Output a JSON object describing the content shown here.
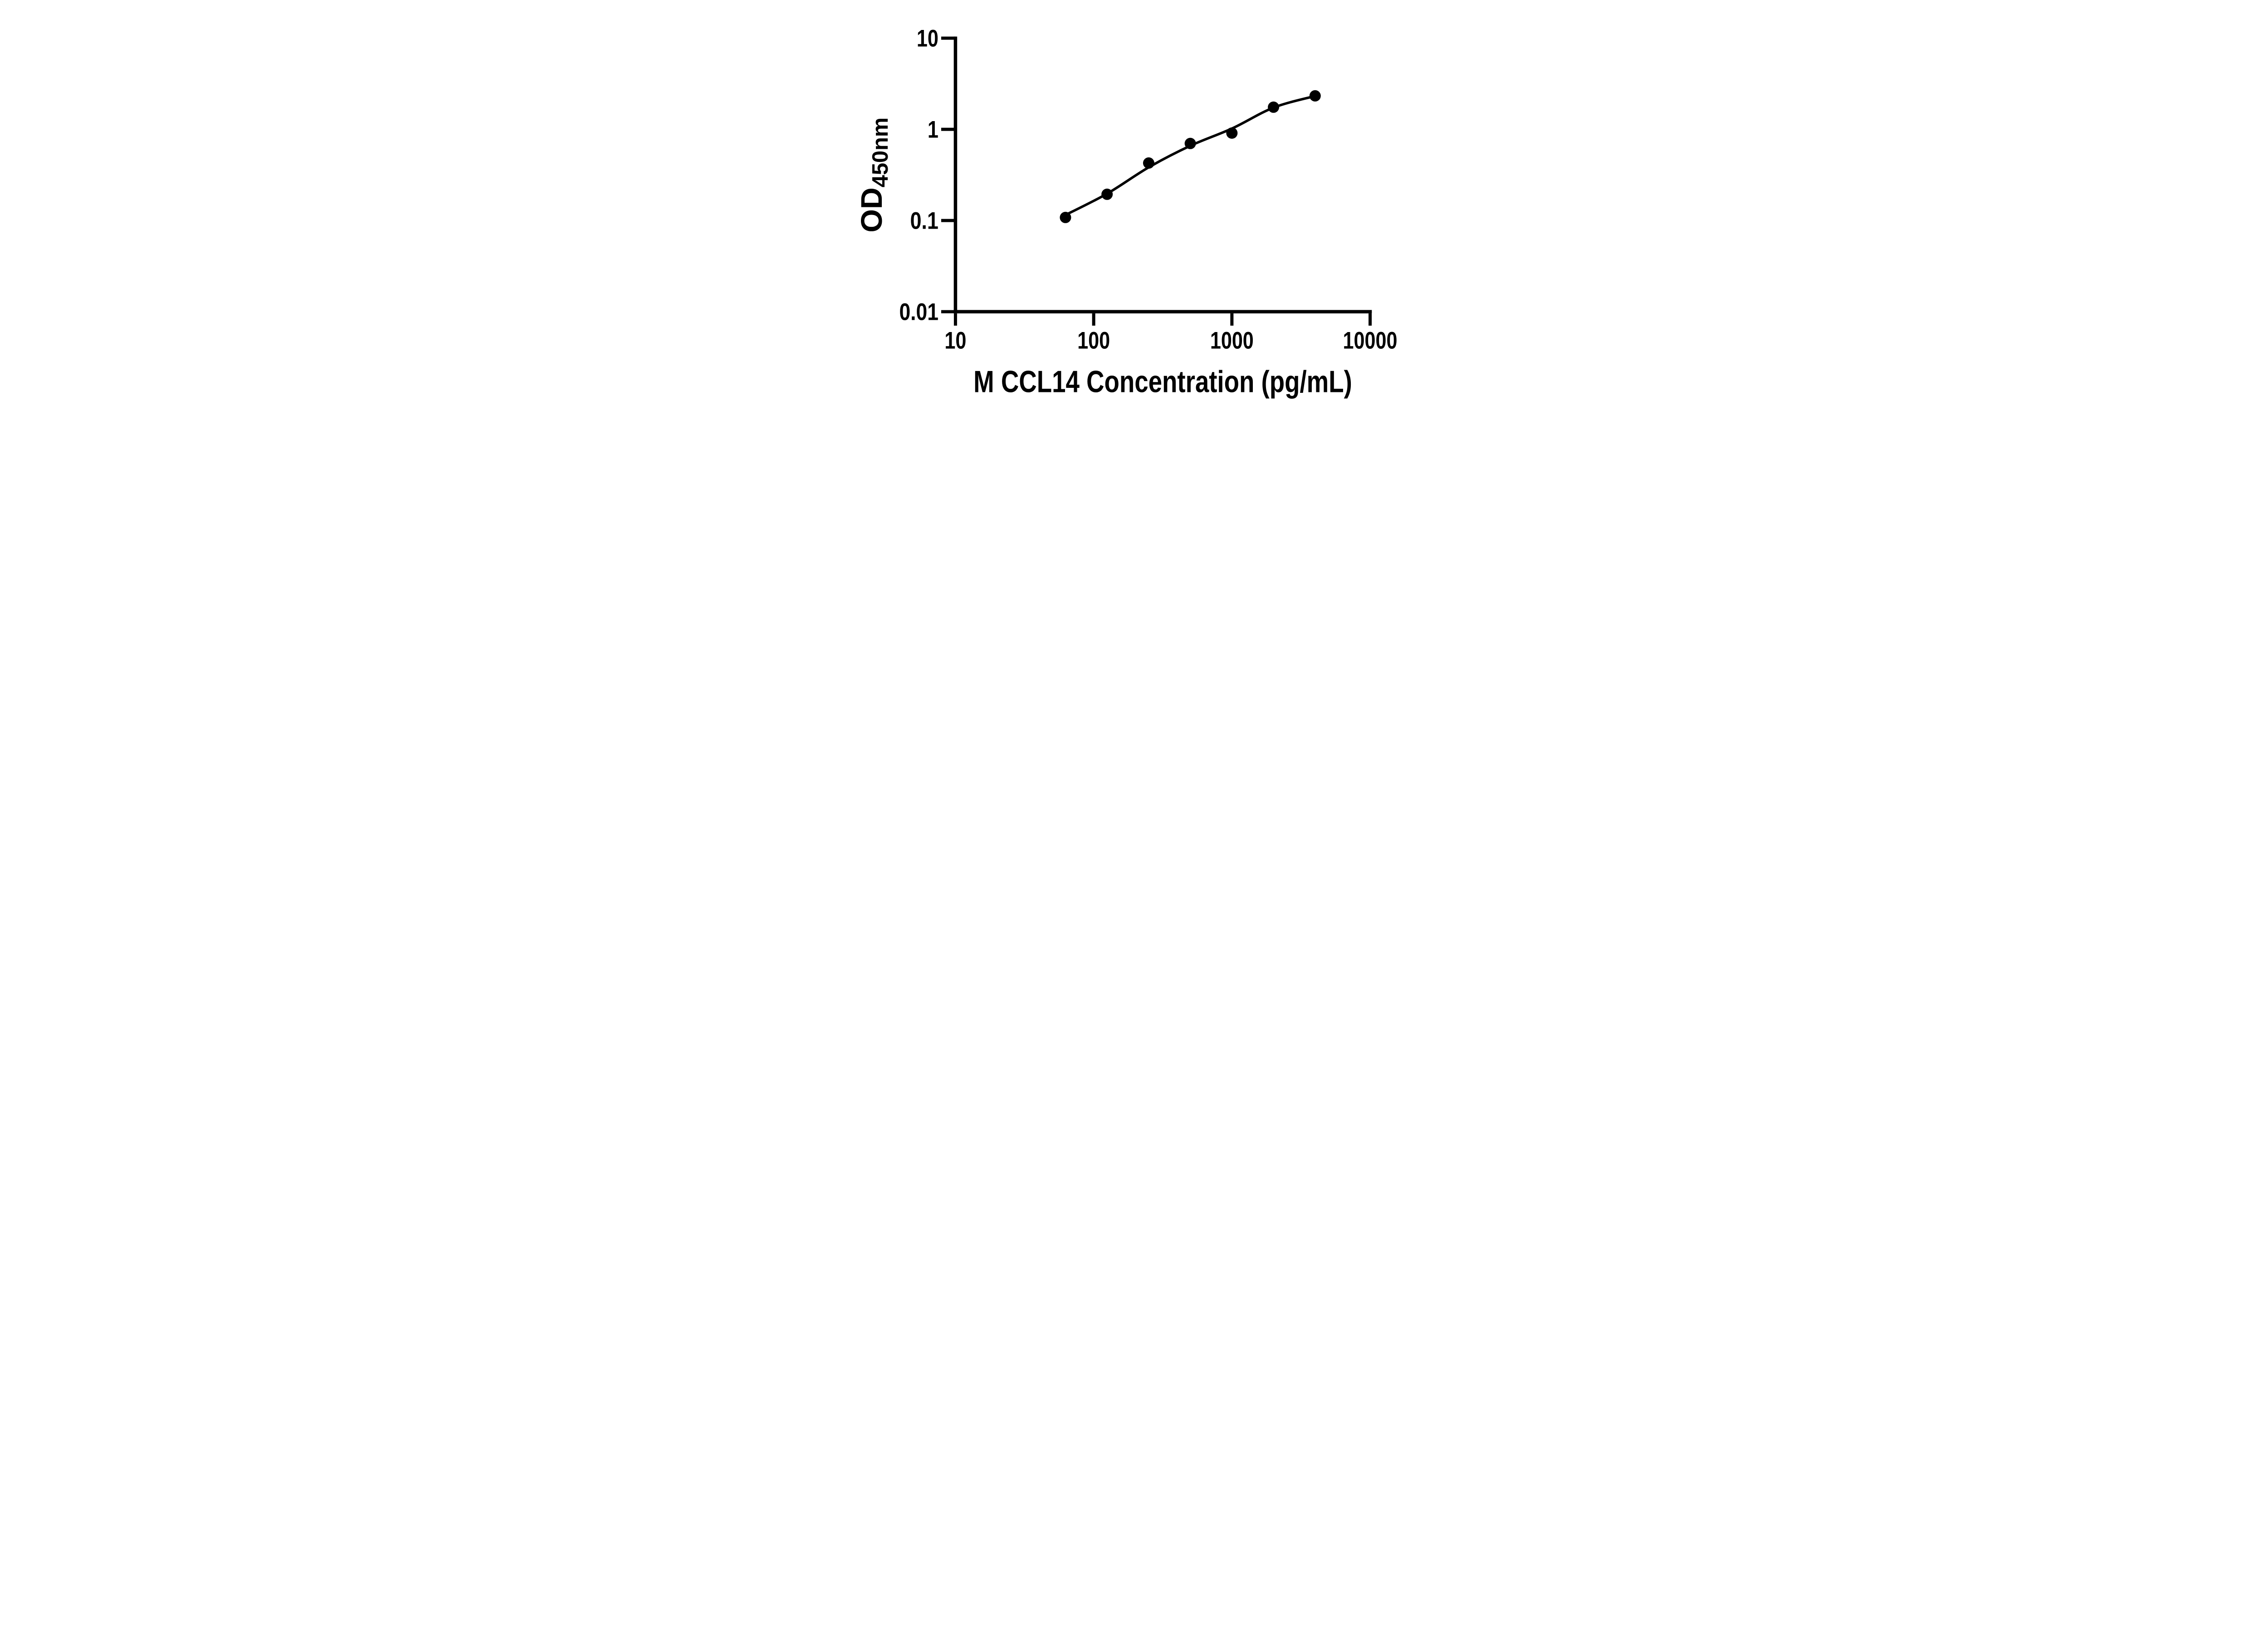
{
  "figure": {
    "background_color": "#ffffff",
    "ink_color": "#000000"
  },
  "chart_data": {
    "type": "scatter",
    "title": "",
    "xlabel": "M CCL14 Concentration (pg/mL)",
    "ylabel": "OD450nm",
    "ylabel_main": "OD",
    "ylabel_subscript": "450nm",
    "x_scale": "log10",
    "y_scale": "log10",
    "xlim": [
      10,
      10000
    ],
    "ylim": [
      0.01,
      10
    ],
    "grid": false,
    "legend": "none",
    "x_ticks": [
      {
        "value": 10,
        "label": "10"
      },
      {
        "value": 100,
        "label": "100"
      },
      {
        "value": 1000,
        "label": "1000"
      },
      {
        "value": 10000,
        "label": "10000"
      }
    ],
    "y_ticks": [
      {
        "value": 10,
        "label": "10"
      },
      {
        "value": 1,
        "label": "1"
      },
      {
        "value": 0.1,
        "label": "0.1"
      },
      {
        "value": 0.01,
        "label": "0.01"
      }
    ],
    "series": [
      {
        "name": "standard-points",
        "marker": "filled-circle",
        "color": "#000000",
        "points": [
          {
            "x": 62.5,
            "y": 0.108
          },
          {
            "x": 125,
            "y": 0.194
          },
          {
            "x": 250,
            "y": 0.427
          },
          {
            "x": 500,
            "y": 0.7
          },
          {
            "x": 1000,
            "y": 0.91
          },
          {
            "x": 2000,
            "y": 1.75
          },
          {
            "x": 4000,
            "y": 2.33
          }
        ]
      }
    ],
    "fit_curve": {
      "name": "standard-curve-fit",
      "color": "#000000",
      "points": [
        {
          "x": 62.5,
          "y": 0.115
        },
        {
          "x": 125,
          "y": 0.197
        },
        {
          "x": 250,
          "y": 0.383
        },
        {
          "x": 500,
          "y": 0.66
        },
        {
          "x": 1000,
          "y": 1.02
        },
        {
          "x": 2000,
          "y": 1.73
        },
        {
          "x": 4000,
          "y": 2.32
        }
      ]
    }
  }
}
